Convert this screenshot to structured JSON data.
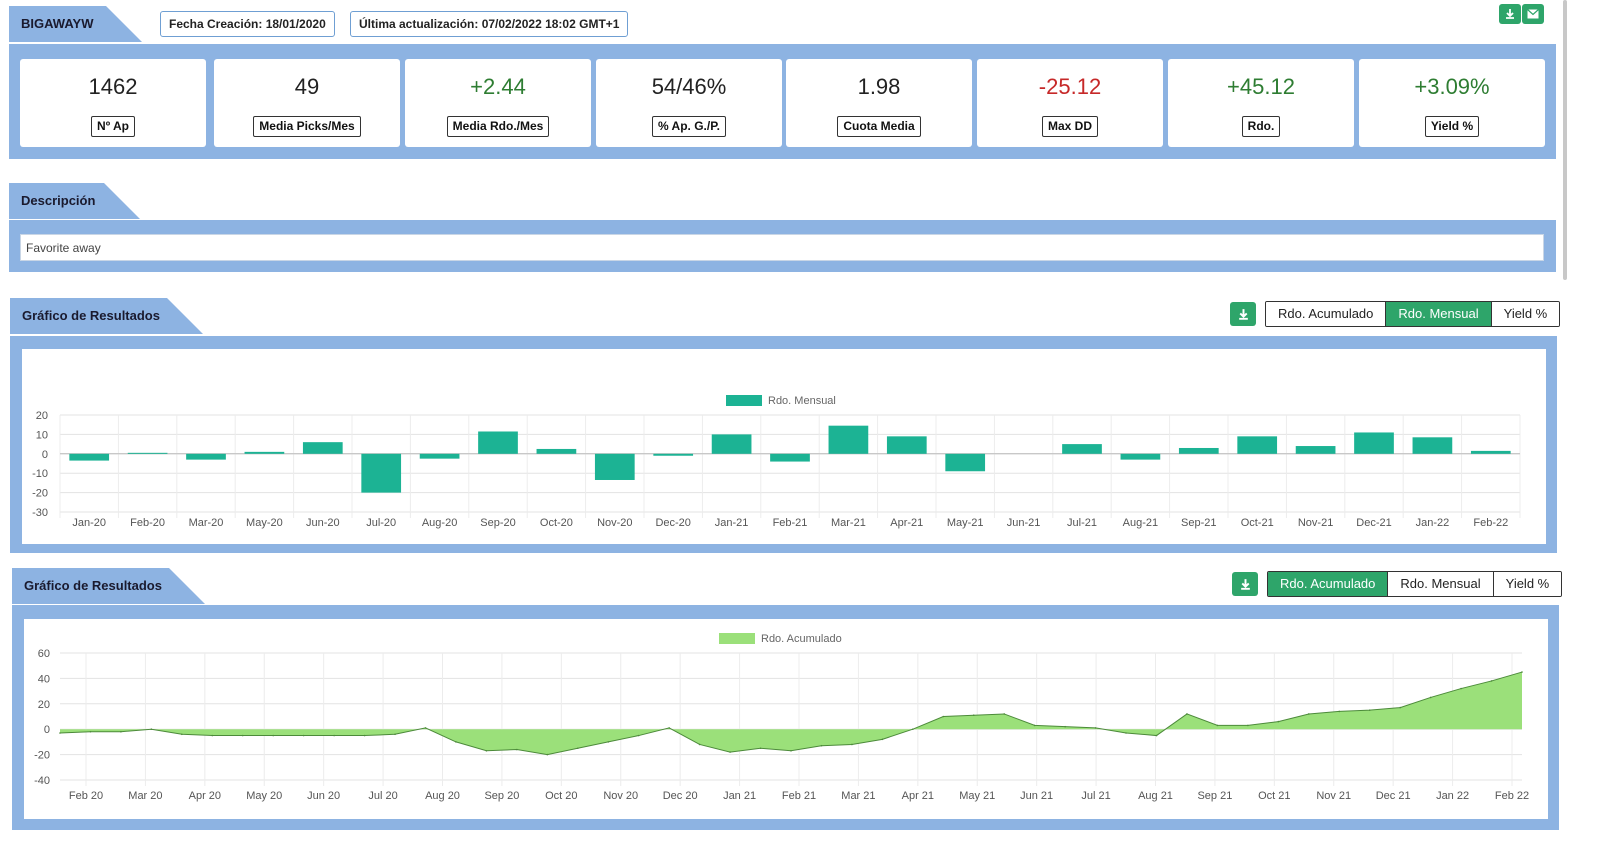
{
  "header": {
    "title": "BIGAWAYW",
    "created": "Fecha Creación: 18/01/2020",
    "updated": "Última actualización: 07/02/2022 18:02 GMT+1"
  },
  "stats": [
    {
      "value": "1462",
      "label": "Nº Ap",
      "tone": "neutral"
    },
    {
      "value": "49",
      "label": "Media Picks/Mes",
      "tone": "neutral"
    },
    {
      "value": "+2.44",
      "label": "Media Rdo./Mes",
      "tone": "pos"
    },
    {
      "value": "54/46%",
      "label": "% Ap. G./P.",
      "tone": "neutral"
    },
    {
      "value": "1.98",
      "label": "Cuota Media",
      "tone": "neutral"
    },
    {
      "value": "-25.12",
      "label": "Max DD",
      "tone": "neg"
    },
    {
      "value": "+45.12",
      "label": "Rdo.",
      "tone": "pos"
    },
    {
      "value": "+3.09%",
      "label": "Yield %",
      "tone": "pos"
    }
  ],
  "description": {
    "title": "Descripción",
    "text": "Favorite away"
  },
  "chart1": {
    "title": "Gráfico de Resultados",
    "buttons": [
      "Rdo. Acumulado",
      "Rdo. Mensual",
      "Yield %"
    ],
    "active": 1
  },
  "chart2": {
    "title": "Gráfico de Resultados",
    "buttons": [
      "Rdo. Acumulado",
      "Rdo. Mensual",
      "Yield %"
    ],
    "active": 0
  },
  "colors": {
    "frame": "#8db3e2",
    "bar": "#1cb394",
    "area": "#9be07a",
    "accent_green": "#2ea56a"
  },
  "icons": [
    "download-icon",
    "envelope-icon"
  ],
  "chart_data": [
    {
      "type": "bar",
      "legend": "Rdo. Mensual",
      "legend_position": "top",
      "categories": [
        "Jan-20",
        "Feb-20",
        "Mar-20",
        "May-20",
        "Jun-20",
        "Jul-20",
        "Aug-20",
        "Sep-20",
        "Oct-20",
        "Nov-20",
        "Dec-20",
        "Jan-21",
        "Feb-21",
        "Mar-21",
        "Apr-21",
        "May-21",
        "Jun-21",
        "Jul-21",
        "Aug-21",
        "Sep-21",
        "Oct-21",
        "Nov-21",
        "Dec-21",
        "Jan-22",
        "Feb-22"
      ],
      "series": [
        {
          "name": "Rdo. Mensual",
          "values": [
            -3.5,
            0.5,
            -3,
            1,
            6,
            -20,
            -2.5,
            11.5,
            2.5,
            -13.5,
            -1,
            10,
            -4,
            14.5,
            9,
            -9,
            0,
            5,
            -3,
            3,
            9,
            4,
            11,
            8.5,
            1.5
          ]
        }
      ],
      "yticks": [
        20,
        10,
        0,
        -10,
        -20,
        -30
      ],
      "ylim": [
        -30,
        20
      ],
      "grid": true
    },
    {
      "type": "area",
      "legend": "Rdo. Acumulado",
      "legend_position": "top",
      "xticks": [
        "Feb 20",
        "Mar 20",
        "Apr 20",
        "May 20",
        "Jun 20",
        "Jul 20",
        "Aug 20",
        "Sep 20",
        "Oct 20",
        "Nov 20",
        "Dec 20",
        "Jan 21",
        "Feb 21",
        "Mar 21",
        "Apr 21",
        "May 21",
        "Jun 21",
        "Jul 21",
        "Aug 21",
        "Sep 21",
        "Oct 21",
        "Nov 21",
        "Dec 21",
        "Jan 22",
        "Feb 22"
      ],
      "x": [
        0,
        0.5,
        1,
        1.5,
        2,
        2.5,
        3,
        3.5,
        4,
        4.5,
        5,
        5.5,
        6,
        6.5,
        7,
        7.5,
        8,
        8.5,
        9,
        9.5,
        10,
        10.5,
        11,
        11.5,
        12,
        12.5,
        13,
        13.5,
        14,
        14.5,
        15,
        15.5,
        16,
        16.5,
        17,
        17.5,
        18,
        18.5,
        19,
        19.5,
        20,
        20.5,
        21,
        21.5,
        22,
        22.5,
        23,
        23.5,
        24
      ],
      "series": [
        {
          "name": "Rdo. Acumulado",
          "values": [
            -3,
            -2,
            -2,
            0,
            -4,
            -5,
            -5,
            -5,
            -5,
            -5,
            -5,
            -4,
            1,
            -10,
            -17,
            -16,
            -20,
            -15,
            -10,
            -5,
            1,
            -12,
            -18,
            -15,
            -17,
            -13,
            -12,
            -8,
            0,
            10,
            11,
            12,
            3,
            2,
            1,
            -3,
            -5,
            12,
            3,
            3,
            6,
            12,
            14,
            15,
            17,
            25,
            32,
            38,
            45
          ]
        }
      ],
      "yticks": [
        60,
        40,
        20,
        0,
        -20,
        -40
      ],
      "ylim": [
        -40,
        60
      ],
      "grid": true
    }
  ]
}
